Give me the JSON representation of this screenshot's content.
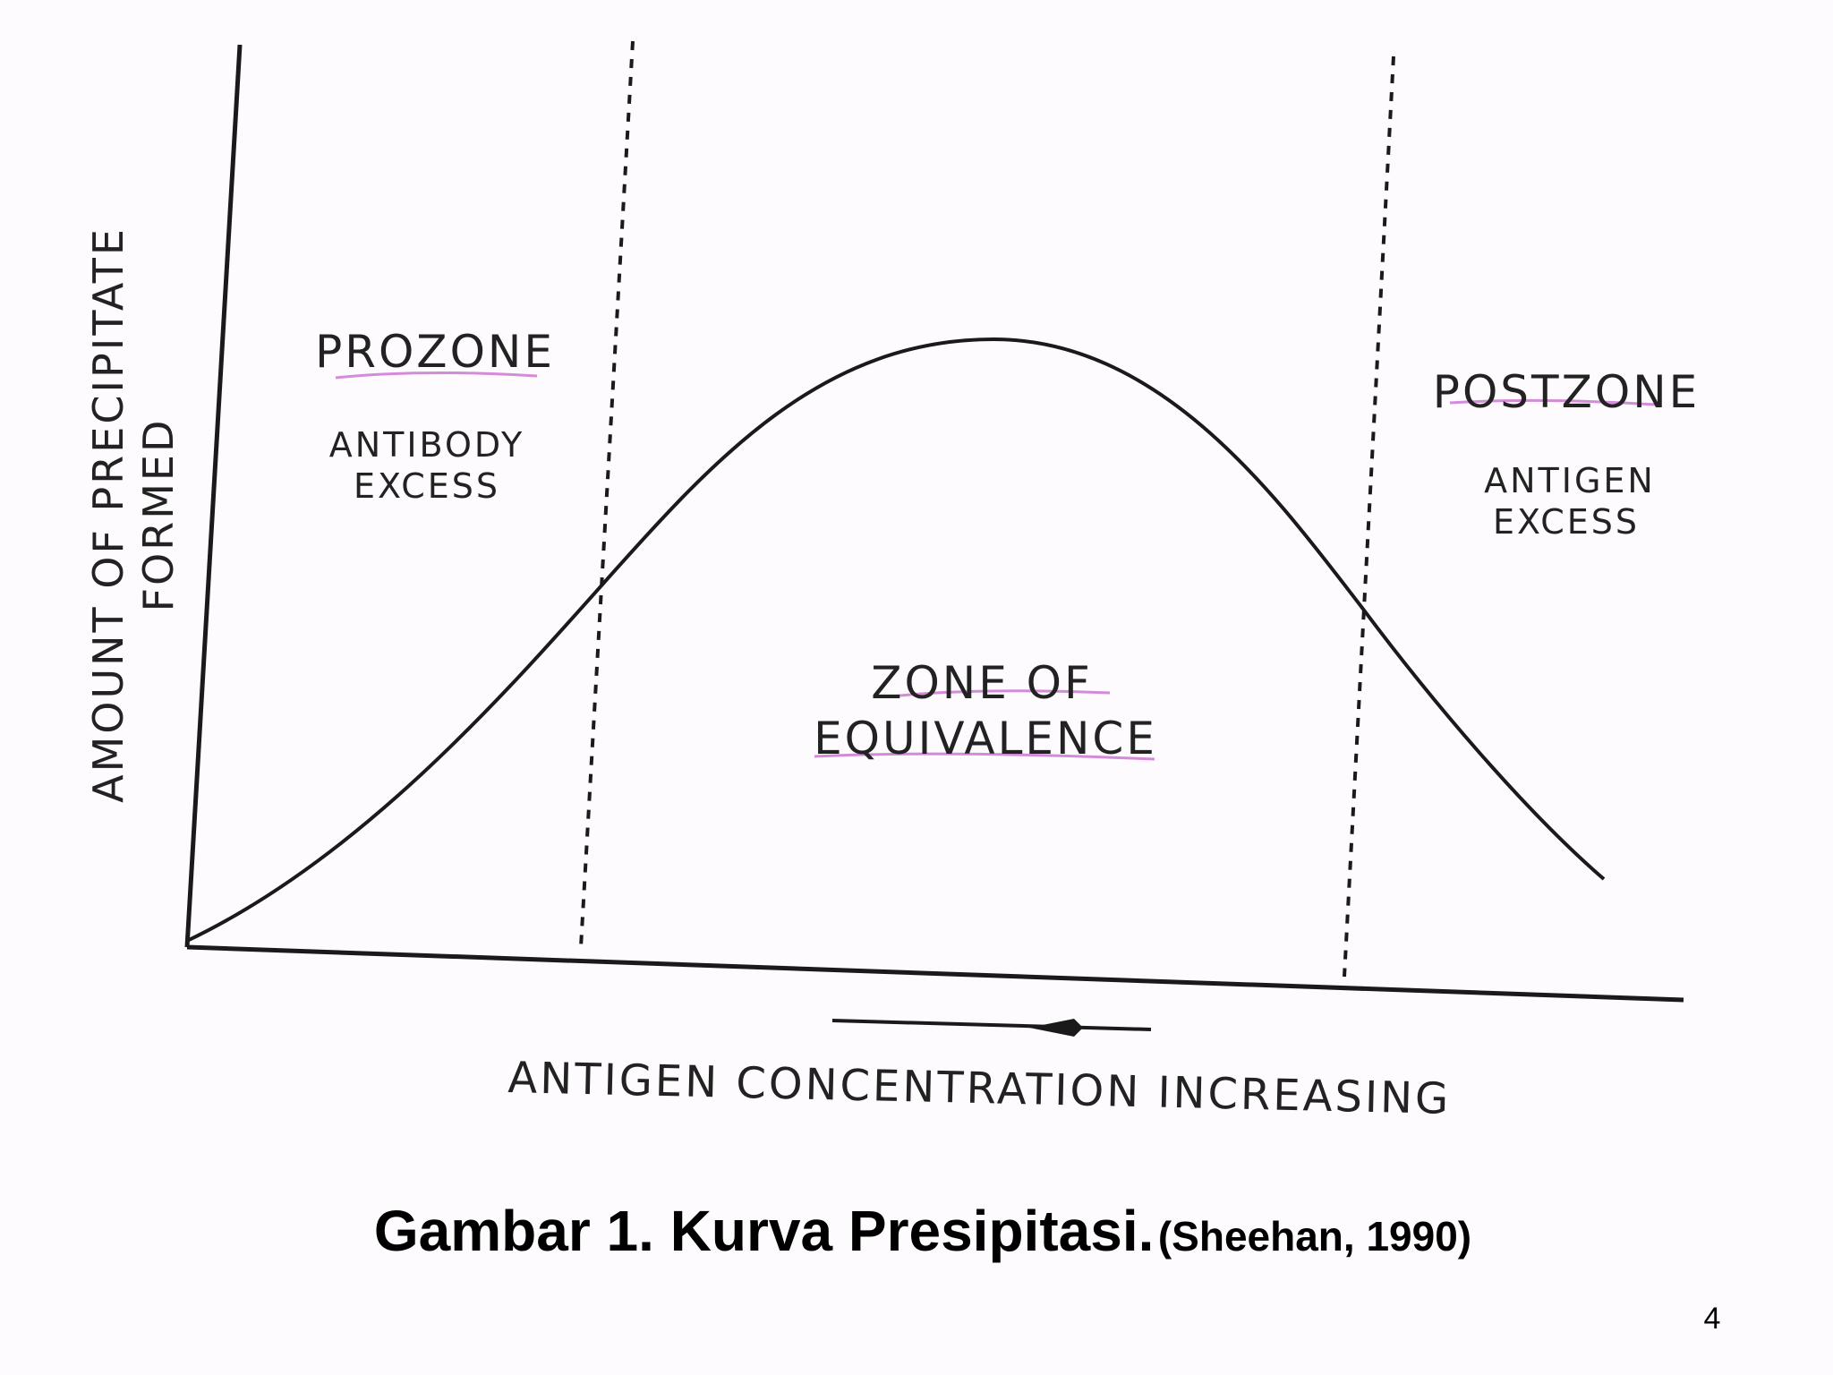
{
  "diagram": {
    "y_axis_label": [
      "AMOUNT OF PRECIPITATE",
      "FORMED"
    ],
    "x_axis_label": "ANTIGEN CONCENTRATION INCREASING",
    "zones": [
      {
        "title": "PROZONE",
        "description": [
          "ANTIBODY",
          "EXCESS"
        ]
      },
      {
        "title": [
          "ZONE OF",
          "EQUIVALENCE"
        ]
      },
      {
        "title": "POSTZONE",
        "description": [
          "ANTIGEN",
          "EXCESS"
        ]
      }
    ]
  },
  "caption": {
    "title": "Gambar 1. Kurva Presipitasi.",
    "source": "(Sheehan, 1990)"
  },
  "page_number": "4"
}
